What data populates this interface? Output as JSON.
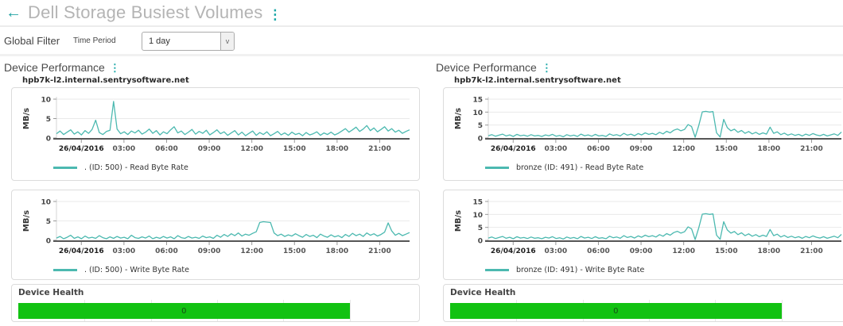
{
  "header": {
    "title": "Dell Storage Busiest Volumes"
  },
  "icons": {
    "back": "←",
    "menu_dots": "⋮",
    "select_chevron": "v"
  },
  "filter": {
    "section_label": "Global Filter",
    "field_label": "Time Period",
    "value": "1 day"
  },
  "columns": [
    {
      "section_title": "Device Performance",
      "hostname": "hpb7k-l2.internal.sentrysoftware.net",
      "health_label": "Device Health"
    },
    {
      "section_title": "Device Performance",
      "hostname": "hpb7k-l2.internal.sentrysoftware.net",
      "health_label": "Device Health"
    }
  ],
  "colors": {
    "accent_teal": "#1ba7a7",
    "line_teal": "#4cb9b0",
    "health_green": "#12c212",
    "title_gray": "#b4b4b4"
  },
  "chart_data": [
    {
      "type": "line",
      "device": "hpb7k-l2.internal.sentrysoftware.net",
      "legend": ". (ID: 500) - Read Byte Rate",
      "ylabel": "MB/s",
      "ylim": [
        0,
        10
      ],
      "yticks": [
        0,
        5,
        10
      ],
      "x_range": [
        -1.75,
        23.1
      ],
      "xticks": [
        {
          "label": "26/04/2016",
          "hour": 0,
          "bold": true
        },
        {
          "label": "03:00",
          "hour": 3
        },
        {
          "label": "06:00",
          "hour": 6
        },
        {
          "label": "09:00",
          "hour": 9
        },
        {
          "label": "12:00",
          "hour": 12
        },
        {
          "label": "15:00",
          "hour": 15
        },
        {
          "label": "18:00",
          "hour": 18
        },
        {
          "label": "21:00",
          "hour": 21
        }
      ],
      "color": "#4cb9b0",
      "values": [
        1.1,
        1.8,
        0.9,
        1.5,
        2.1,
        1.0,
        1.6,
        0.8,
        1.9,
        1.2,
        2.2,
        4.6,
        1.4,
        0.9,
        1.7,
        2.0,
        9.4,
        2.3,
        1.1,
        1.6,
        0.9,
        1.8,
        1.3,
        2.0,
        1.0,
        1.5,
        2.3,
        1.2,
        1.9,
        0.8,
        1.6,
        1.1,
        2.1,
        2.9,
        1.3,
        1.8,
        0.9,
        1.5,
        2.2,
        1.0,
        1.7,
        1.2,
        2.0,
        0.8,
        1.4,
        2.1,
        1.1,
        1.6,
        0.7,
        1.3,
        1.9,
        0.8,
        1.5,
        0.6,
        1.2,
        1.8,
        0.7,
        1.4,
        0.9,
        1.6,
        0.6,
        1.1,
        1.7,
        0.8,
        1.3,
        0.7,
        1.5,
        0.9,
        1.2,
        0.6,
        1.4,
        0.8,
        1.1,
        1.6,
        0.7,
        1.3,
        0.9,
        1.5,
        0.8,
        1.2,
        1.8,
        2.4,
        1.5,
        2.1,
        2.8,
        1.7,
        2.3,
        3.2,
        1.9,
        2.6,
        1.6,
        2.2,
        2.9,
        1.8,
        2.4,
        1.5,
        2.0,
        1.2,
        1.7,
        2.1
      ]
    },
    {
      "type": "line",
      "device": "hpb7k-l2.internal.sentrysoftware.net",
      "legend": ". (ID: 500) - Write Byte Rate",
      "ylabel": "MB/s",
      "ylim": [
        0,
        10
      ],
      "yticks": [
        0,
        5,
        10
      ],
      "x_range": [
        -1.75,
        23.1
      ],
      "xticks": [
        {
          "label": "26/04/2016",
          "hour": 0,
          "bold": true
        },
        {
          "label": "03:00",
          "hour": 3
        },
        {
          "label": "06:00",
          "hour": 6
        },
        {
          "label": "09:00",
          "hour": 9
        },
        {
          "label": "12:00",
          "hour": 12
        },
        {
          "label": "15:00",
          "hour": 15
        },
        {
          "label": "18:00",
          "hour": 18
        },
        {
          "label": "21:00",
          "hour": 21
        }
      ],
      "color": "#4cb9b0",
      "values": [
        0.6,
        1.0,
        0.4,
        0.8,
        1.3,
        0.5,
        0.9,
        0.4,
        1.1,
        0.6,
        0.8,
        0.5,
        1.2,
        0.7,
        0.4,
        0.9,
        0.5,
        1.0,
        0.6,
        0.8,
        0.4,
        1.3,
        0.7,
        0.5,
        0.9,
        0.6,
        1.1,
        0.4,
        0.8,
        0.5,
        1.0,
        0.6,
        0.9,
        0.4,
        1.2,
        0.7,
        0.5,
        1.0,
        0.6,
        0.8,
        0.5,
        1.1,
        0.7,
        0.9,
        0.5,
        1.3,
        0.8,
        1.5,
        1.0,
        1.7,
        1.2,
        1.9,
        1.1,
        1.6,
        1.3,
        1.8,
        2.2,
        4.6,
        4.8,
        4.7,
        4.6,
        1.9,
        1.2,
        1.6,
        1.0,
        1.4,
        1.1,
        1.7,
        1.2,
        0.8,
        1.5,
        1.0,
        1.3,
        0.7,
        1.6,
        1.1,
        0.8,
        1.4,
        0.9,
        1.2,
        0.7,
        1.5,
        1.0,
        1.8,
        1.2,
        1.6,
        1.0,
        1.9,
        1.3,
        1.7,
        1.1,
        1.5,
        2.1,
        4.5,
        2.4,
        1.3,
        1.8,
        1.2,
        1.6,
        2.0
      ]
    },
    {
      "type": "line",
      "device": "hpb7k-l2.internal.sentrysoftware.net",
      "legend": "bronze (ID: 491) - Read Byte Rate",
      "ylabel": "MB/s",
      "ylim": [
        0,
        15
      ],
      "yticks": [
        0,
        5,
        10,
        15
      ],
      "x_range": [
        -1.75,
        23.1
      ],
      "xticks": [
        {
          "label": "26/04/2016",
          "hour": 0,
          "bold": true
        },
        {
          "label": "03:00",
          "hour": 3
        },
        {
          "label": "06:00",
          "hour": 6
        },
        {
          "label": "09:00",
          "hour": 9
        },
        {
          "label": "12:00",
          "hour": 12
        },
        {
          "label": "15:00",
          "hour": 15
        },
        {
          "label": "18:00",
          "hour": 18
        },
        {
          "label": "21:00",
          "hour": 21
        }
      ],
      "color": "#4cb9b0",
      "values": [
        0.9,
        1.3,
        0.7,
        1.1,
        1.5,
        0.8,
        1.2,
        0.6,
        1.4,
        0.9,
        1.1,
        0.7,
        1.3,
        0.8,
        1.0,
        0.6,
        1.2,
        0.9,
        1.4,
        0.7,
        1.0,
        0.5,
        1.3,
        0.8,
        1.1,
        0.6,
        1.5,
        0.9,
        1.2,
        0.7,
        1.4,
        0.8,
        1.0,
        0.6,
        1.6,
        1.0,
        1.3,
        0.8,
        1.8,
        1.1,
        1.5,
        0.9,
        1.7,
        1.2,
        2.0,
        1.4,
        1.8,
        1.3,
        2.2,
        1.6,
        2.6,
        2.0,
        3.0,
        3.5,
        2.8,
        3.3,
        5.2,
        4.4,
        0.3,
        4.8,
        10.1,
        10.3,
        10.0,
        10.2,
        2.0,
        0.4,
        7.2,
        4.0,
        2.8,
        3.4,
        2.2,
        2.9,
        1.8,
        2.5,
        1.6,
        2.2,
        1.4,
        2.0,
        1.5,
        4.2,
        1.8,
        2.4,
        1.3,
        1.9,
        1.1,
        1.6,
        1.0,
        1.4,
        0.8,
        1.5,
        1.0,
        1.7,
        1.2,
        0.9,
        1.4,
        0.8,
        1.2,
        1.6,
        1.0,
        2.3
      ]
    },
    {
      "type": "line",
      "device": "hpb7k-l2.internal.sentrysoftware.net",
      "legend": "bronze (ID: 491) - Write Byte Rate",
      "ylabel": "MB/s",
      "ylim": [
        0,
        15
      ],
      "yticks": [
        0,
        5,
        10,
        15
      ],
      "x_range": [
        -1.75,
        23.1
      ],
      "xticks": [
        {
          "label": "26/04/2016",
          "hour": 0,
          "bold": true
        },
        {
          "label": "03:00",
          "hour": 3
        },
        {
          "label": "06:00",
          "hour": 6
        },
        {
          "label": "09:00",
          "hour": 9
        },
        {
          "label": "12:00",
          "hour": 12
        },
        {
          "label": "15:00",
          "hour": 15
        },
        {
          "label": "18:00",
          "hour": 18
        },
        {
          "label": "21:00",
          "hour": 21
        }
      ],
      "color": "#4cb9b0",
      "values": [
        0.9,
        1.3,
        0.7,
        1.1,
        1.5,
        0.8,
        1.2,
        0.6,
        1.4,
        0.9,
        1.1,
        0.7,
        1.3,
        0.8,
        1.0,
        0.6,
        1.2,
        0.9,
        1.4,
        0.7,
        1.0,
        0.5,
        1.3,
        0.8,
        1.1,
        0.6,
        1.5,
        0.9,
        1.2,
        0.7,
        1.4,
        0.8,
        1.0,
        0.6,
        1.6,
        1.0,
        1.3,
        0.8,
        1.8,
        1.1,
        1.5,
        0.9,
        1.7,
        1.2,
        2.0,
        1.4,
        1.8,
        1.3,
        2.2,
        1.6,
        2.6,
        2.0,
        3.0,
        3.5,
        2.8,
        3.3,
        5.2,
        4.4,
        0.3,
        4.8,
        10.1,
        10.3,
        10.0,
        10.2,
        2.0,
        0.4,
        7.2,
        4.0,
        2.8,
        3.4,
        2.2,
        2.9,
        1.8,
        2.5,
        1.6,
        2.2,
        1.4,
        2.0,
        1.5,
        4.2,
        1.8,
        2.4,
        1.3,
        1.9,
        1.1,
        1.6,
        1.0,
        1.4,
        0.8,
        1.5,
        1.0,
        1.7,
        1.2,
        0.9,
        1.4,
        0.8,
        1.2,
        1.6,
        1.0,
        2.3
      ]
    },
    {
      "type": "bar",
      "title": "Device Health",
      "categories": [
        "device-health"
      ],
      "values": [
        0
      ],
      "value_label": "0",
      "bar_color": "#12c212"
    },
    {
      "type": "bar",
      "title": "Device Health",
      "categories": [
        "device-health"
      ],
      "values": [
        0
      ],
      "value_label": "0",
      "bar_color": "#12c212"
    }
  ]
}
